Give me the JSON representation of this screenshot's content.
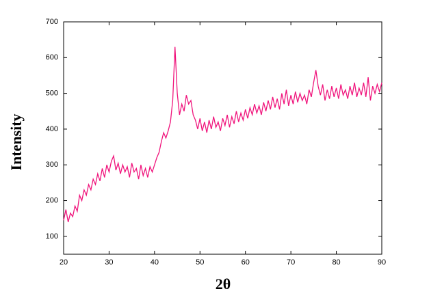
{
  "chart_data": {
    "type": "line",
    "x_label": "2θ",
    "y_label": "Intensity",
    "color": "#f0147c",
    "x": [
      20,
      20.5,
      21,
      21.5,
      22,
      22.5,
      23,
      23.5,
      24,
      24.5,
      25,
      25.5,
      26,
      26.5,
      27,
      27.5,
      28,
      28.5,
      29,
      29.5,
      30,
      30.5,
      31,
      31.5,
      32,
      32.5,
      33,
      33.5,
      34,
      34.5,
      35,
      35.5,
      36,
      36.5,
      37,
      37.5,
      38,
      38.5,
      39,
      39.5,
      40,
      40.5,
      41,
      41.5,
      42,
      42.5,
      43,
      43.5,
      44,
      44.5,
      45,
      45.5,
      46,
      46.5,
      47,
      47.5,
      48,
      48.5,
      49,
      49.5,
      50,
      50.5,
      51,
      51.5,
      52,
      52.5,
      53,
      53.5,
      54,
      54.5,
      55,
      55.5,
      56,
      56.5,
      57,
      57.5,
      58,
      58.5,
      59,
      59.5,
      60,
      60.5,
      61,
      61.5,
      62,
      62.5,
      63,
      63.5,
      64,
      64.5,
      65,
      65.5,
      66,
      66.5,
      67,
      67.5,
      68,
      68.5,
      69,
      69.5,
      70,
      70.5,
      71,
      71.5,
      72,
      72.5,
      73,
      73.5,
      74,
      74.5,
      75,
      75.5,
      76,
      76.5,
      77,
      77.5,
      78,
      78.5,
      79,
      79.5,
      80,
      80.5,
      81,
      81.5,
      82,
      82.5,
      83,
      83.5,
      84,
      84.5,
      85,
      85.5,
      86,
      86.5,
      87,
      87.5,
      88,
      88.5,
      89,
      89.5,
      90
    ],
    "values": [
      145,
      175,
      140,
      165,
      155,
      185,
      170,
      215,
      200,
      230,
      215,
      245,
      230,
      260,
      245,
      275,
      255,
      290,
      265,
      300,
      280,
      310,
      325,
      285,
      305,
      275,
      300,
      280,
      295,
      265,
      305,
      280,
      290,
      260,
      300,
      270,
      290,
      265,
      295,
      280,
      300,
      320,
      335,
      365,
      390,
      375,
      395,
      420,
      480,
      630,
      500,
      440,
      470,
      450,
      495,
      470,
      480,
      440,
      425,
      400,
      430,
      395,
      420,
      390,
      425,
      400,
      435,
      405,
      420,
      395,
      430,
      410,
      440,
      405,
      435,
      415,
      450,
      420,
      445,
      425,
      455,
      430,
      460,
      440,
      470,
      445,
      465,
      440,
      475,
      450,
      480,
      455,
      490,
      460,
      485,
      455,
      500,
      470,
      510,
      465,
      495,
      470,
      505,
      475,
      500,
      480,
      495,
      470,
      510,
      490,
      530,
      565,
      520,
      495,
      525,
      480,
      510,
      485,
      520,
      490,
      515,
      485,
      525,
      495,
      510,
      485,
      520,
      495,
      530,
      490,
      515,
      495,
      530,
      490,
      545,
      480,
      520,
      500,
      525,
      505,
      530
    ],
    "xlim": [
      20,
      90
    ],
    "xticks": [
      20,
      30,
      40,
      50,
      60,
      70,
      80,
      90
    ],
    "ylim": [
      50,
      700
    ],
    "yticks": [
      100,
      200,
      300,
      400,
      500,
      600,
      700
    ]
  }
}
